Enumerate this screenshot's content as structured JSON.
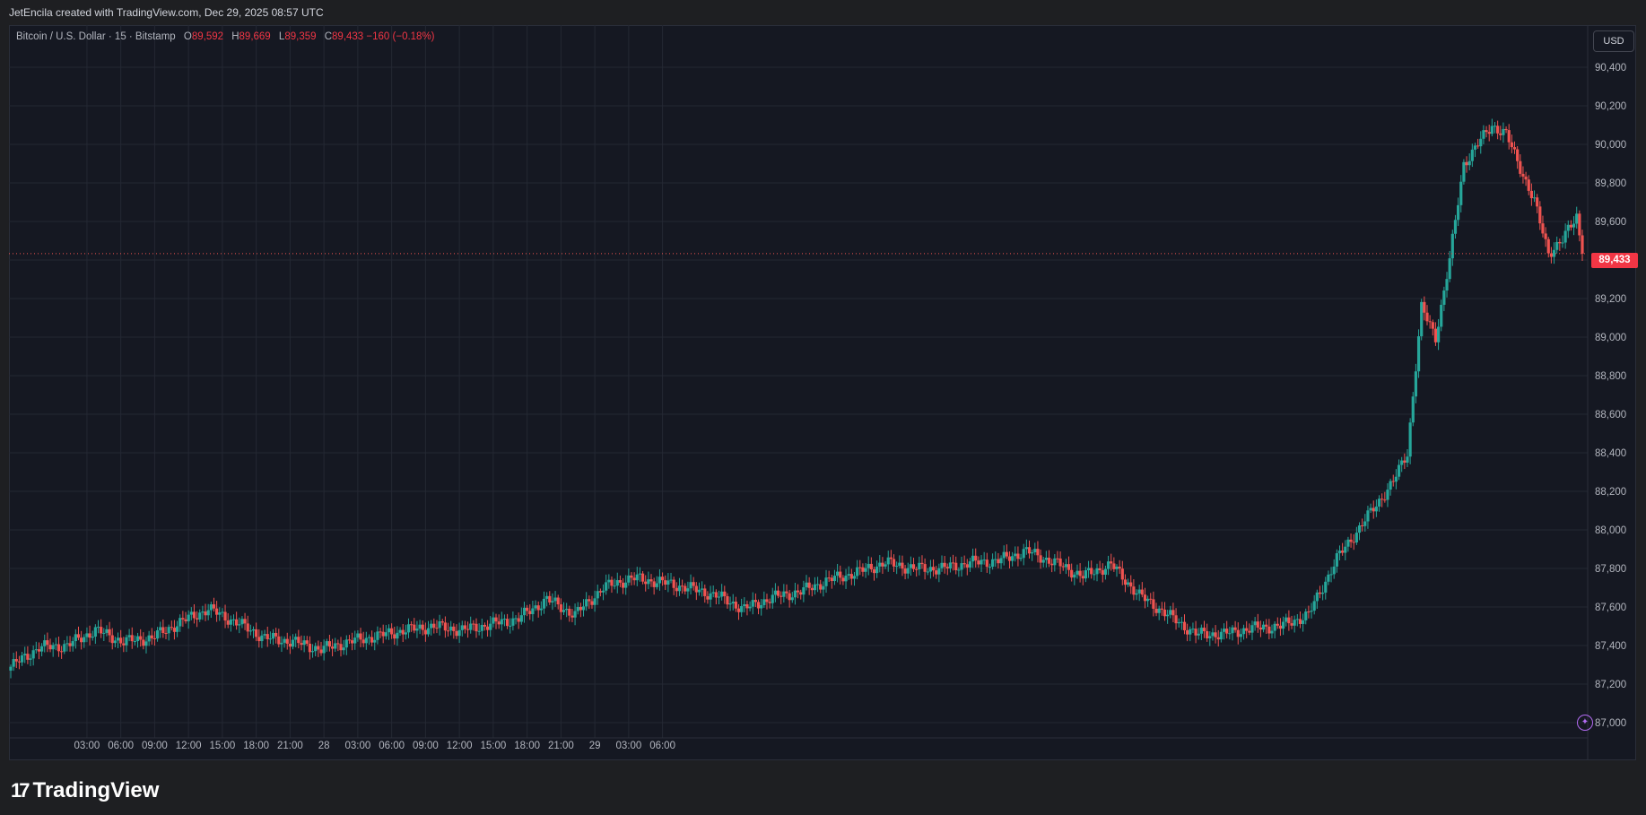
{
  "header": {
    "credit": "JetEncila created with TradingView.com, Dec 29, 2025 08:57 UTC"
  },
  "legend": {
    "symbol": "Bitcoin / U.S. Dollar · 15 · Bitstamp",
    "o_label": "O",
    "o_value": "89,592",
    "h_label": "H",
    "h_value": "89,669",
    "l_label": "L",
    "l_value": "89,359",
    "c_label": "C",
    "c_value": "89,433",
    "change": "−160 (−0.18%)"
  },
  "currency_button": "USD",
  "last_price_label": "89,433",
  "brand": {
    "logo_text": "TradingView",
    "logo_mark": "17"
  },
  "colors": {
    "up": "#26a69a",
    "down": "#ef5350",
    "grid": "#242833",
    "axis_text": "#b2b5be",
    "background": "#151822"
  },
  "chart_data": {
    "type": "candlestick",
    "title": "Bitcoin / U.S. Dollar · 15 · Bitstamp",
    "ylim": [
      86900,
      90600
    ],
    "y_ticks": [
      "87,000",
      "87,200",
      "87,400",
      "87,600",
      "87,800",
      "88,000",
      "88,200",
      "88,400",
      "88,600",
      "88,800",
      "89,000",
      "89,200",
      "89,400",
      "89,600",
      "89,800",
      "90,000",
      "90,200",
      "90,400"
    ],
    "x_ticks": [
      "03:00",
      "06:00",
      "09:00",
      "12:00",
      "15:00",
      "18:00",
      "21:00",
      "28",
      "03:00",
      "06:00",
      "09:00",
      "12:00",
      "15:00",
      "18:00",
      "21:00",
      "29",
      "03:00",
      "06:00"
    ],
    "grid": true,
    "last_price": 89433,
    "anchors": [
      [
        0,
        87290
      ],
      [
        10,
        87390
      ],
      [
        20,
        87400
      ],
      [
        30,
        87480
      ],
      [
        40,
        87420
      ],
      [
        50,
        87440
      ],
      [
        60,
        87520
      ],
      [
        70,
        87590
      ],
      [
        80,
        87520
      ],
      [
        90,
        87440
      ],
      [
        100,
        87420
      ],
      [
        110,
        87380
      ],
      [
        120,
        87420
      ],
      [
        130,
        87450
      ],
      [
        140,
        87480
      ],
      [
        150,
        87500
      ],
      [
        160,
        87480
      ],
      [
        170,
        87510
      ],
      [
        180,
        87540
      ],
      [
        190,
        87640
      ],
      [
        200,
        87560
      ],
      [
        210,
        87700
      ],
      [
        220,
        87750
      ],
      [
        230,
        87730
      ],
      [
        240,
        87700
      ],
      [
        250,
        87660
      ],
      [
        260,
        87590
      ],
      [
        270,
        87650
      ],
      [
        280,
        87680
      ],
      [
        290,
        87740
      ],
      [
        300,
        87780
      ],
      [
        310,
        87830
      ],
      [
        320,
        87800
      ],
      [
        330,
        87800
      ],
      [
        340,
        87830
      ],
      [
        350,
        87840
      ],
      [
        360,
        87890
      ],
      [
        370,
        87830
      ],
      [
        380,
        87760
      ],
      [
        390,
        87820
      ],
      [
        400,
        87660
      ],
      [
        410,
        87560
      ],
      [
        420,
        87460
      ],
      [
        430,
        87460
      ],
      [
        440,
        87490
      ],
      [
        450,
        87500
      ],
      [
        460,
        87560
      ],
      [
        470,
        87850
      ],
      [
        480,
        88050
      ],
      [
        490,
        88250
      ],
      [
        495,
        88400
      ],
      [
        500,
        89150
      ],
      [
        505,
        89000
      ],
      [
        510,
        89400
      ],
      [
        515,
        89900
      ],
      [
        520,
        90000
      ],
      [
        525,
        90100
      ],
      [
        530,
        90050
      ],
      [
        535,
        89880
      ],
      [
        540,
        89700
      ],
      [
        545,
        89440
      ],
      [
        550,
        89500
      ],
      [
        555,
        89633
      ],
      [
        557,
        89433
      ]
    ]
  }
}
